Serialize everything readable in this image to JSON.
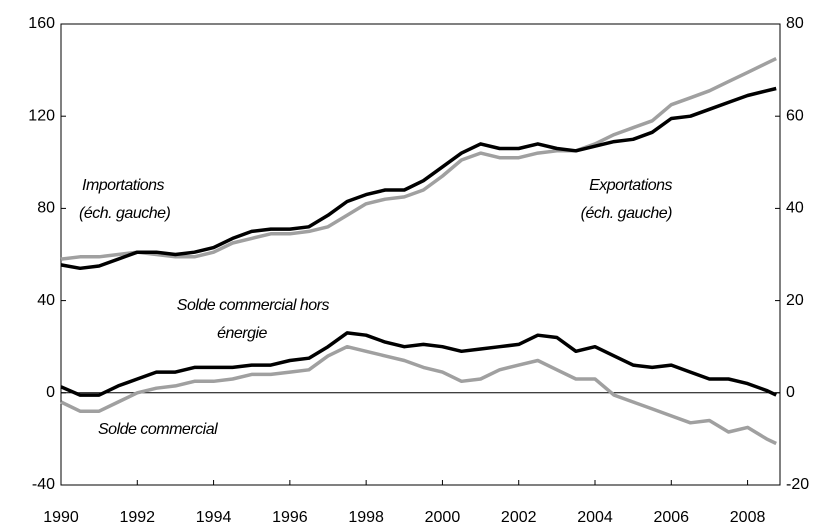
{
  "chart_data": {
    "type": "line",
    "x": [
      1990,
      1990.5,
      1991,
      1991.5,
      1992,
      1992.5,
      1993,
      1993.5,
      1994,
      1994.5,
      1995,
      1995.5,
      1996,
      1996.5,
      1997,
      1997.5,
      1998,
      1998.5,
      1999,
      1999.5,
      2000,
      2000.5,
      2001,
      2001.5,
      2002,
      2002.5,
      2003,
      2003.5,
      2004,
      2004.5,
      2005,
      2005.5,
      2006,
      2006.5,
      2007,
      2007.5,
      2008,
      2008.5,
      2008.75
    ],
    "xlim": [
      1990,
      2008.85
    ],
    "xticks": [
      1990,
      1992,
      1994,
      1996,
      1998,
      2000,
      2002,
      2004,
      2006,
      2008
    ],
    "ylim": [
      -40,
      160
    ],
    "yticks": [
      -40,
      0,
      40,
      80,
      120,
      160
    ],
    "y2lim": [
      -20,
      80
    ],
    "y2ticks": [
      -20,
      0,
      20,
      40,
      60,
      80
    ],
    "series": [
      {
        "color": "#000000",
        "values": [
          55.5,
          54,
          55,
          58,
          61,
          61,
          60,
          61,
          63,
          67,
          70,
          71,
          71,
          72,
          77,
          83,
          86,
          88,
          88,
          92,
          98,
          104,
          108,
          106,
          106,
          108,
          106,
          105,
          107,
          109,
          110,
          113,
          119,
          120,
          123,
          126,
          129,
          131,
          132
        ]
      },
      {
        "color": "#a0a0a0",
        "values": [
          58,
          59,
          59,
          60,
          61,
          60,
          59,
          59,
          61,
          65,
          67,
          69,
          69,
          70,
          72,
          77,
          82,
          84,
          85,
          88,
          94,
          101,
          104,
          102,
          102,
          104,
          105,
          105,
          108,
          112,
          115,
          118,
          125,
          128,
          131,
          135,
          139,
          143,
          145
        ]
      },
      {
        "color": "#000000",
        "axis": "y2",
        "values": [
          1.3,
          -0.5,
          -0.5,
          1.5,
          3,
          4.5,
          4.5,
          5.5,
          5.5,
          5.5,
          6,
          6,
          7,
          7.5,
          10,
          13,
          12.5,
          11,
          10,
          10.5,
          10,
          9,
          9.5,
          10,
          10.5,
          12.5,
          12,
          9,
          10,
          8,
          6,
          5.5,
          6,
          4.5,
          3,
          3,
          2,
          0.5,
          -0.5
        ]
      },
      {
        "color": "#a0a0a0",
        "axis": "y2",
        "values": [
          -2,
          -4,
          -4,
          -2,
          0,
          1,
          1.5,
          2.5,
          2.5,
          3,
          4,
          4,
          4.5,
          5,
          8,
          10,
          9,
          8,
          7,
          5.5,
          4.5,
          2.5,
          3,
          5,
          6,
          7,
          5,
          3,
          3,
          -0.5,
          -2,
          -3.5,
          -5,
          -6.5,
          -6,
          -8.5,
          -7.5,
          -10,
          -11
        ]
      }
    ],
    "annotations": [
      "Importations",
      "(éch. gauche)",
      "Exportations",
      "(éch. gauche)",
      "Solde commercial hors",
      "énergie",
      "Solde commercial"
    ]
  }
}
